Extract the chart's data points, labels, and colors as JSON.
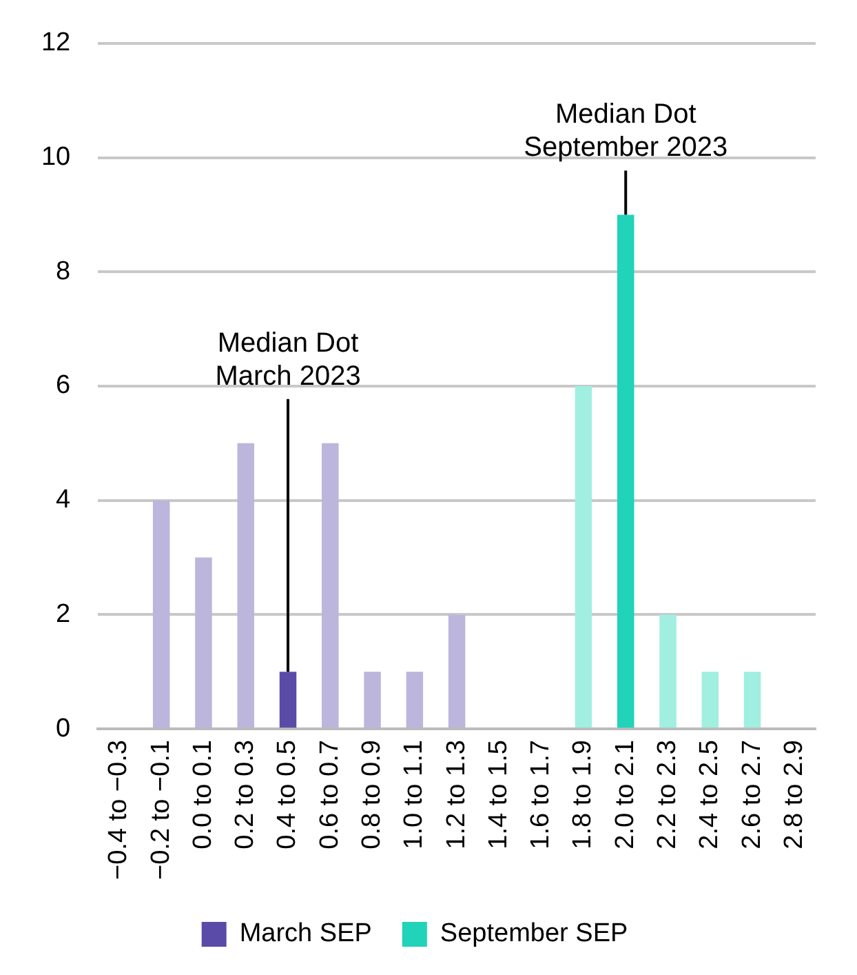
{
  "chart_data": {
    "type": "bar",
    "categories": [
      "−0.4 to −0.3",
      "−0.2 to −0.1",
      "0.0 to 0.1",
      "0.2 to 0.3",
      "0.4 to 0.5",
      "0.6 to 0.7",
      "0.8 to 0.9",
      "1.0 to 1.1",
      "1.2 to 1.3",
      "1.4 to 1.5",
      "1.6 to 1.7",
      "1.8 to 1.9",
      "2.0 to 2.1",
      "2.2 to 2.3",
      "2.4 to 2.5",
      "2.6 to 2.7",
      "2.8 to 2.9"
    ],
    "series": [
      {
        "name": "March SEP",
        "color": "#5b4ba8",
        "values": [
          null,
          4,
          3,
          5,
          1,
          5,
          1,
          1,
          2,
          null,
          null,
          null,
          null,
          null,
          null,
          null,
          null
        ],
        "colors": [
          "#bcb5dc",
          "#bcb5dc",
          "#bcb5dc",
          "#bcb5dc",
          "#5b4ba8",
          "#bcb5dc",
          "#bcb5dc",
          "#bcb5dc",
          "#bcb5dc",
          "#bcb5dc",
          "#bcb5dc",
          "#bcb5dc",
          "#bcb5dc",
          "#bcb5dc",
          "#bcb5dc",
          "#bcb5dc",
          "#bcb5dc"
        ]
      },
      {
        "name": "September SEP",
        "color": "#21d3b8",
        "values": [
          null,
          null,
          null,
          null,
          null,
          null,
          null,
          null,
          null,
          null,
          null,
          6,
          9,
          2,
          1,
          1,
          null
        ],
        "colors": [
          "#a0efe0",
          "#a0efe0",
          "#a0efe0",
          "#a0efe0",
          "#a0efe0",
          "#a0efe0",
          "#a0efe0",
          "#a0efe0",
          "#a0efe0",
          "#a0efe0",
          "#a0efe0",
          "#a0efe0",
          "#21d3b8",
          "#a0efe0",
          "#a0efe0",
          "#a0efe0",
          "#a0efe0"
        ]
      }
    ],
    "ylim": [
      0,
      12
    ],
    "yticks": [
      0,
      2,
      4,
      6,
      8,
      10,
      12
    ],
    "grid": "y",
    "legend": "bottom",
    "annotations": [
      {
        "text": "Median Dot\nMarch 2023",
        "x": "0.4 to 0.5",
        "y": 1
      },
      {
        "text": "Median Dot\nSeptember 2023",
        "x": "2.0 to 2.1",
        "y": 9
      }
    ]
  }
}
